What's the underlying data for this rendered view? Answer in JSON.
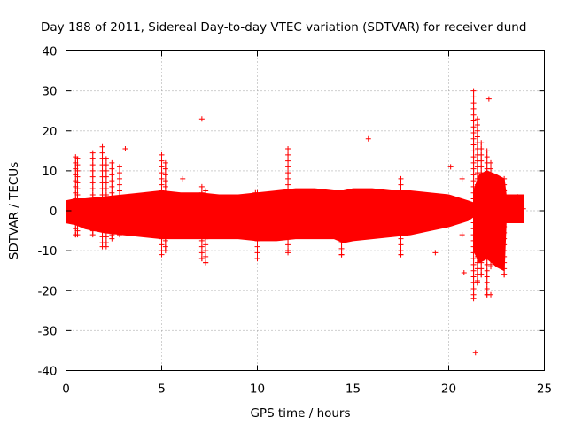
{
  "chart_data": {
    "type": "scatter",
    "title": "Day 188 of 2011, Sidereal Day-to-day VTEC variation (SDTVAR) for receiver dund",
    "xlabel": "GPS time / hours",
    "ylabel": "SDTVAR / TECUs",
    "xlim": [
      0,
      25
    ],
    "ylim": [
      -40,
      40
    ],
    "xticks": [
      0,
      5,
      10,
      15,
      20,
      25
    ],
    "yticks": [
      -40,
      -30,
      -20,
      -10,
      0,
      10,
      20,
      30,
      40
    ],
    "xtick_labels": [
      "0",
      "5",
      "10",
      "15",
      "20",
      "25"
    ],
    "ytick_labels": [
      "-40",
      "-30",
      "-20",
      "-10",
      "0",
      "10",
      "20",
      "30",
      "40"
    ],
    "grid": true,
    "marker": "+",
    "color": "#ff0000",
    "band": {
      "x": [
        0,
        0.5,
        1,
        2,
        3,
        4,
        5,
        6,
        7,
        8,
        9,
        10,
        11,
        12,
        13,
        14,
        14.5,
        15,
        16,
        17,
        18,
        19,
        20,
        21,
        21.3
      ],
      "upper": [
        2.5,
        3,
        3,
        3.5,
        4,
        4.5,
        5,
        4.5,
        4.5,
        4,
        4,
        4.5,
        5,
        5.5,
        5.5,
        5,
        5,
        5.5,
        5.5,
        5,
        5,
        4.5,
        4,
        2.5,
        2
      ],
      "lower": [
        -3,
        -3.5,
        -4.5,
        -5.5,
        -6,
        -6.5,
        -7,
        -7,
        -7,
        -7,
        -7,
        -7.5,
        -7.5,
        -7,
        -7,
        -7,
        -8,
        -7.5,
        -7,
        -6.5,
        -6,
        -5,
        -4,
        -2.5,
        -1.5
      ]
    },
    "late_band": {
      "x": [
        21.3,
        21.6,
        22,
        22.5,
        22.9,
        23,
        23.5,
        23.9
      ],
      "upper": [
        5,
        9,
        10,
        9,
        8,
        4,
        4,
        4
      ],
      "lower": [
        -10,
        -13,
        -12,
        -14,
        -15,
        -3,
        -3,
        -3
      ]
    },
    "spikes": [
      {
        "x": 0.5,
        "ymin": -6,
        "ymax": 13.5
      },
      {
        "x": 0.6,
        "ymin": -6,
        "ymax": 13
      },
      {
        "x": 1.4,
        "ymin": -6,
        "ymax": 14.5
      },
      {
        "x": 1.9,
        "ymin": -9,
        "ymax": 16
      },
      {
        "x": 2.1,
        "ymin": -9,
        "ymax": 13
      },
      {
        "x": 2.4,
        "ymin": -7,
        "ymax": 12
      },
      {
        "x": 2.8,
        "ymin": -6,
        "ymax": 11
      },
      {
        "x": 5.0,
        "ymin": -11,
        "ymax": 14
      },
      {
        "x": 5.2,
        "ymin": -10,
        "ymax": 12
      },
      {
        "x": 7.1,
        "ymin": -12,
        "ymax": 6
      },
      {
        "x": 7.3,
        "ymin": -13,
        "ymax": 5
      },
      {
        "x": 10.0,
        "ymin": -12,
        "ymax": 4.5
      },
      {
        "x": 11.6,
        "ymin": -10,
        "ymax": 15.5
      },
      {
        "x": 14.4,
        "ymin": -11,
        "ymax": 4
      },
      {
        "x": 17.5,
        "ymin": -11,
        "ymax": 8
      },
      {
        "x": 21.3,
        "ymin": -22,
        "ymax": 30
      },
      {
        "x": 21.5,
        "ymin": -18,
        "ymax": 23
      },
      {
        "x": 21.7,
        "ymin": -16,
        "ymax": 17
      },
      {
        "x": 22.0,
        "ymin": -21,
        "ymax": 15
      },
      {
        "x": 22.2,
        "ymin": -14,
        "ymax": 12
      },
      {
        "x": 22.9,
        "ymin": -16,
        "ymax": 8
      }
    ],
    "outliers": [
      {
        "x": 7.1,
        "y": 23
      },
      {
        "x": 15.8,
        "y": 18
      },
      {
        "x": 3.1,
        "y": 15.5
      },
      {
        "x": 6.1,
        "y": 8
      },
      {
        "x": 9.9,
        "y": 4.5
      },
      {
        "x": 11.6,
        "y": -10.5
      },
      {
        "x": 14.4,
        "y": -11
      },
      {
        "x": 17.5,
        "y": -11
      },
      {
        "x": 19.3,
        "y": -10.5
      },
      {
        "x": 20.1,
        "y": 11
      },
      {
        "x": 20.7,
        "y": 8
      },
      {
        "x": 20.7,
        "y": -6
      },
      {
        "x": 20.8,
        "y": -15.5
      },
      {
        "x": 22.1,
        "y": 28
      },
      {
        "x": 22.2,
        "y": -21
      },
      {
        "x": 21.4,
        "y": -35.5
      },
      {
        "x": 21.5,
        "y": -18
      },
      {
        "x": 23.6,
        "y": 3.5
      },
      {
        "x": 23.9,
        "y": 0.5
      }
    ]
  }
}
